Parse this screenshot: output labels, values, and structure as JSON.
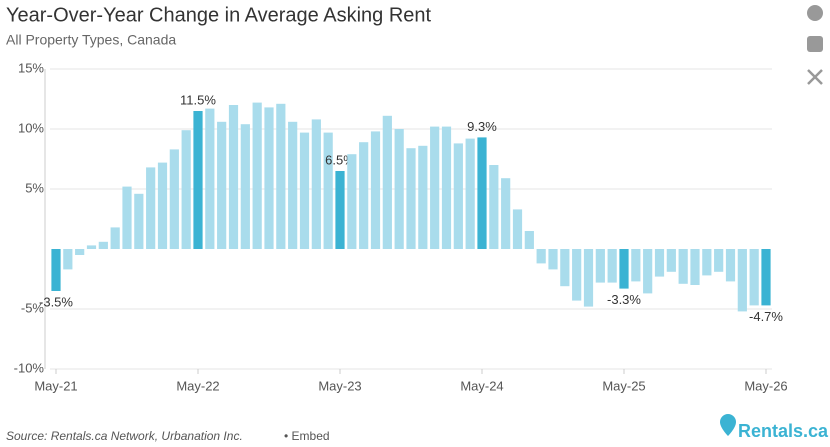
{
  "chart_data": {
    "type": "bar",
    "title": "Year-Over-Year Change in Average Asking Rent",
    "subtitle": "All Property Types, Canada",
    "source": "Source: Rentals.ca Network, Urbanation Inc.",
    "embed": "• Embed",
    "logo": "Rentals.ca",
    "categories": [
      "May-21",
      null,
      null,
      null,
      null,
      null,
      null,
      null,
      null,
      null,
      null,
      null,
      "May-22",
      null,
      null,
      null,
      null,
      null,
      null,
      null,
      null,
      null,
      null,
      null,
      "May-23",
      null,
      null,
      null,
      null,
      null,
      null,
      null,
      null,
      null,
      null,
      null,
      "May-24",
      null,
      null,
      null,
      null,
      null,
      null,
      null,
      null,
      null,
      null,
      null,
      "May-25",
      null,
      null,
      null,
      null,
      null,
      null,
      null,
      null,
      null,
      null,
      null,
      "May-26"
    ],
    "values": [
      -3.5,
      -1.7,
      -0.5,
      0.3,
      0.6,
      1.8,
      5.2,
      4.6,
      6.8,
      7.2,
      8.3,
      9.9,
      11.5,
      11.7,
      10.6,
      12.0,
      10.4,
      12.2,
      11.8,
      12.1,
      10.6,
      9.7,
      10.8,
      9.7,
      6.5,
      7.9,
      8.9,
      9.8,
      11.1,
      10.0,
      8.4,
      8.6,
      10.2,
      10.2,
      8.8,
      9.2,
      9.3,
      7.0,
      5.9,
      3.3,
      1.5,
      -1.2,
      -1.7,
      -3.1,
      -4.3,
      -4.8,
      -2.8,
      -2.8,
      -3.3,
      -2.7,
      -3.7,
      -2.3,
      -1.9,
      -2.9,
      -3.0,
      -2.2,
      -1.9,
      -2.7,
      -5.2,
      -4.7,
      -4.7
    ],
    "value_labels": [
      "-3.5%",
      null,
      null,
      null,
      null,
      null,
      null,
      null,
      null,
      null,
      null,
      null,
      "11.5%",
      null,
      null,
      null,
      null,
      null,
      null,
      null,
      null,
      null,
      null,
      null,
      "6.5%",
      null,
      null,
      null,
      null,
      null,
      null,
      null,
      null,
      null,
      null,
      null,
      "9.3%",
      null,
      null,
      null,
      null,
      null,
      null,
      null,
      null,
      null,
      null,
      null,
      "-3.3%",
      null,
      null,
      null,
      null,
      null,
      null,
      null,
      null,
      null,
      null,
      null,
      "-4.7%"
    ],
    "color": "#a9dcec",
    "highlight_color": "#3bb3d3",
    "ylim": [
      -10,
      15
    ],
    "yticks": [
      {
        "value": 15,
        "label": "15%"
      },
      {
        "value": 10,
        "label": "10%"
      },
      {
        "value": 5,
        "label": "5%"
      },
      {
        "value": -5,
        "label": "-5%"
      },
      {
        "value": -10,
        "label": "-10%"
      }
    ],
    "grid": true
  }
}
